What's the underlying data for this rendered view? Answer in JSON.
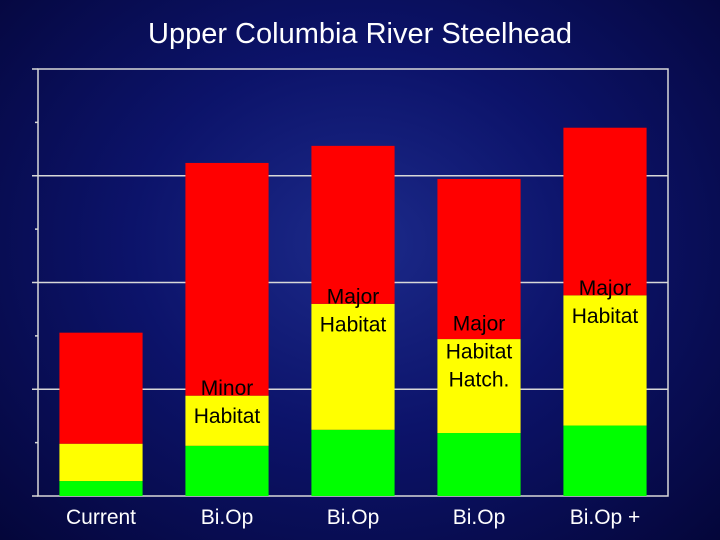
{
  "title": "Upper Columbia River Steelhead",
  "chart_data": {
    "type": "bar",
    "stacked": true,
    "title": "Upper Columbia River Steelhead",
    "categories": [
      "Current",
      "Bi.Op",
      "Bi.Op",
      "Bi.Op",
      "Bi.Op +"
    ],
    "ylim": [
      0,
      4
    ],
    "grid": true,
    "series": [
      {
        "color": "#00ff00",
        "values": [
          0.14,
          0.47,
          0.62,
          0.59,
          0.66
        ]
      },
      {
        "color": "#ffff00",
        "values": [
          0.35,
          0.47,
          1.18,
          0.88,
          1.22
        ]
      },
      {
        "color": "#ff0000",
        "values": [
          1.04,
          2.18,
          1.48,
          1.5,
          1.57
        ]
      }
    ],
    "bar_labels": [
      [],
      [
        "Minor",
        "Habitat"
      ],
      [
        "Major",
        "Habitat"
      ],
      [
        "Major",
        "Habitat",
        "Hatch."
      ],
      [
        "Major",
        "Habitat"
      ]
    ]
  }
}
